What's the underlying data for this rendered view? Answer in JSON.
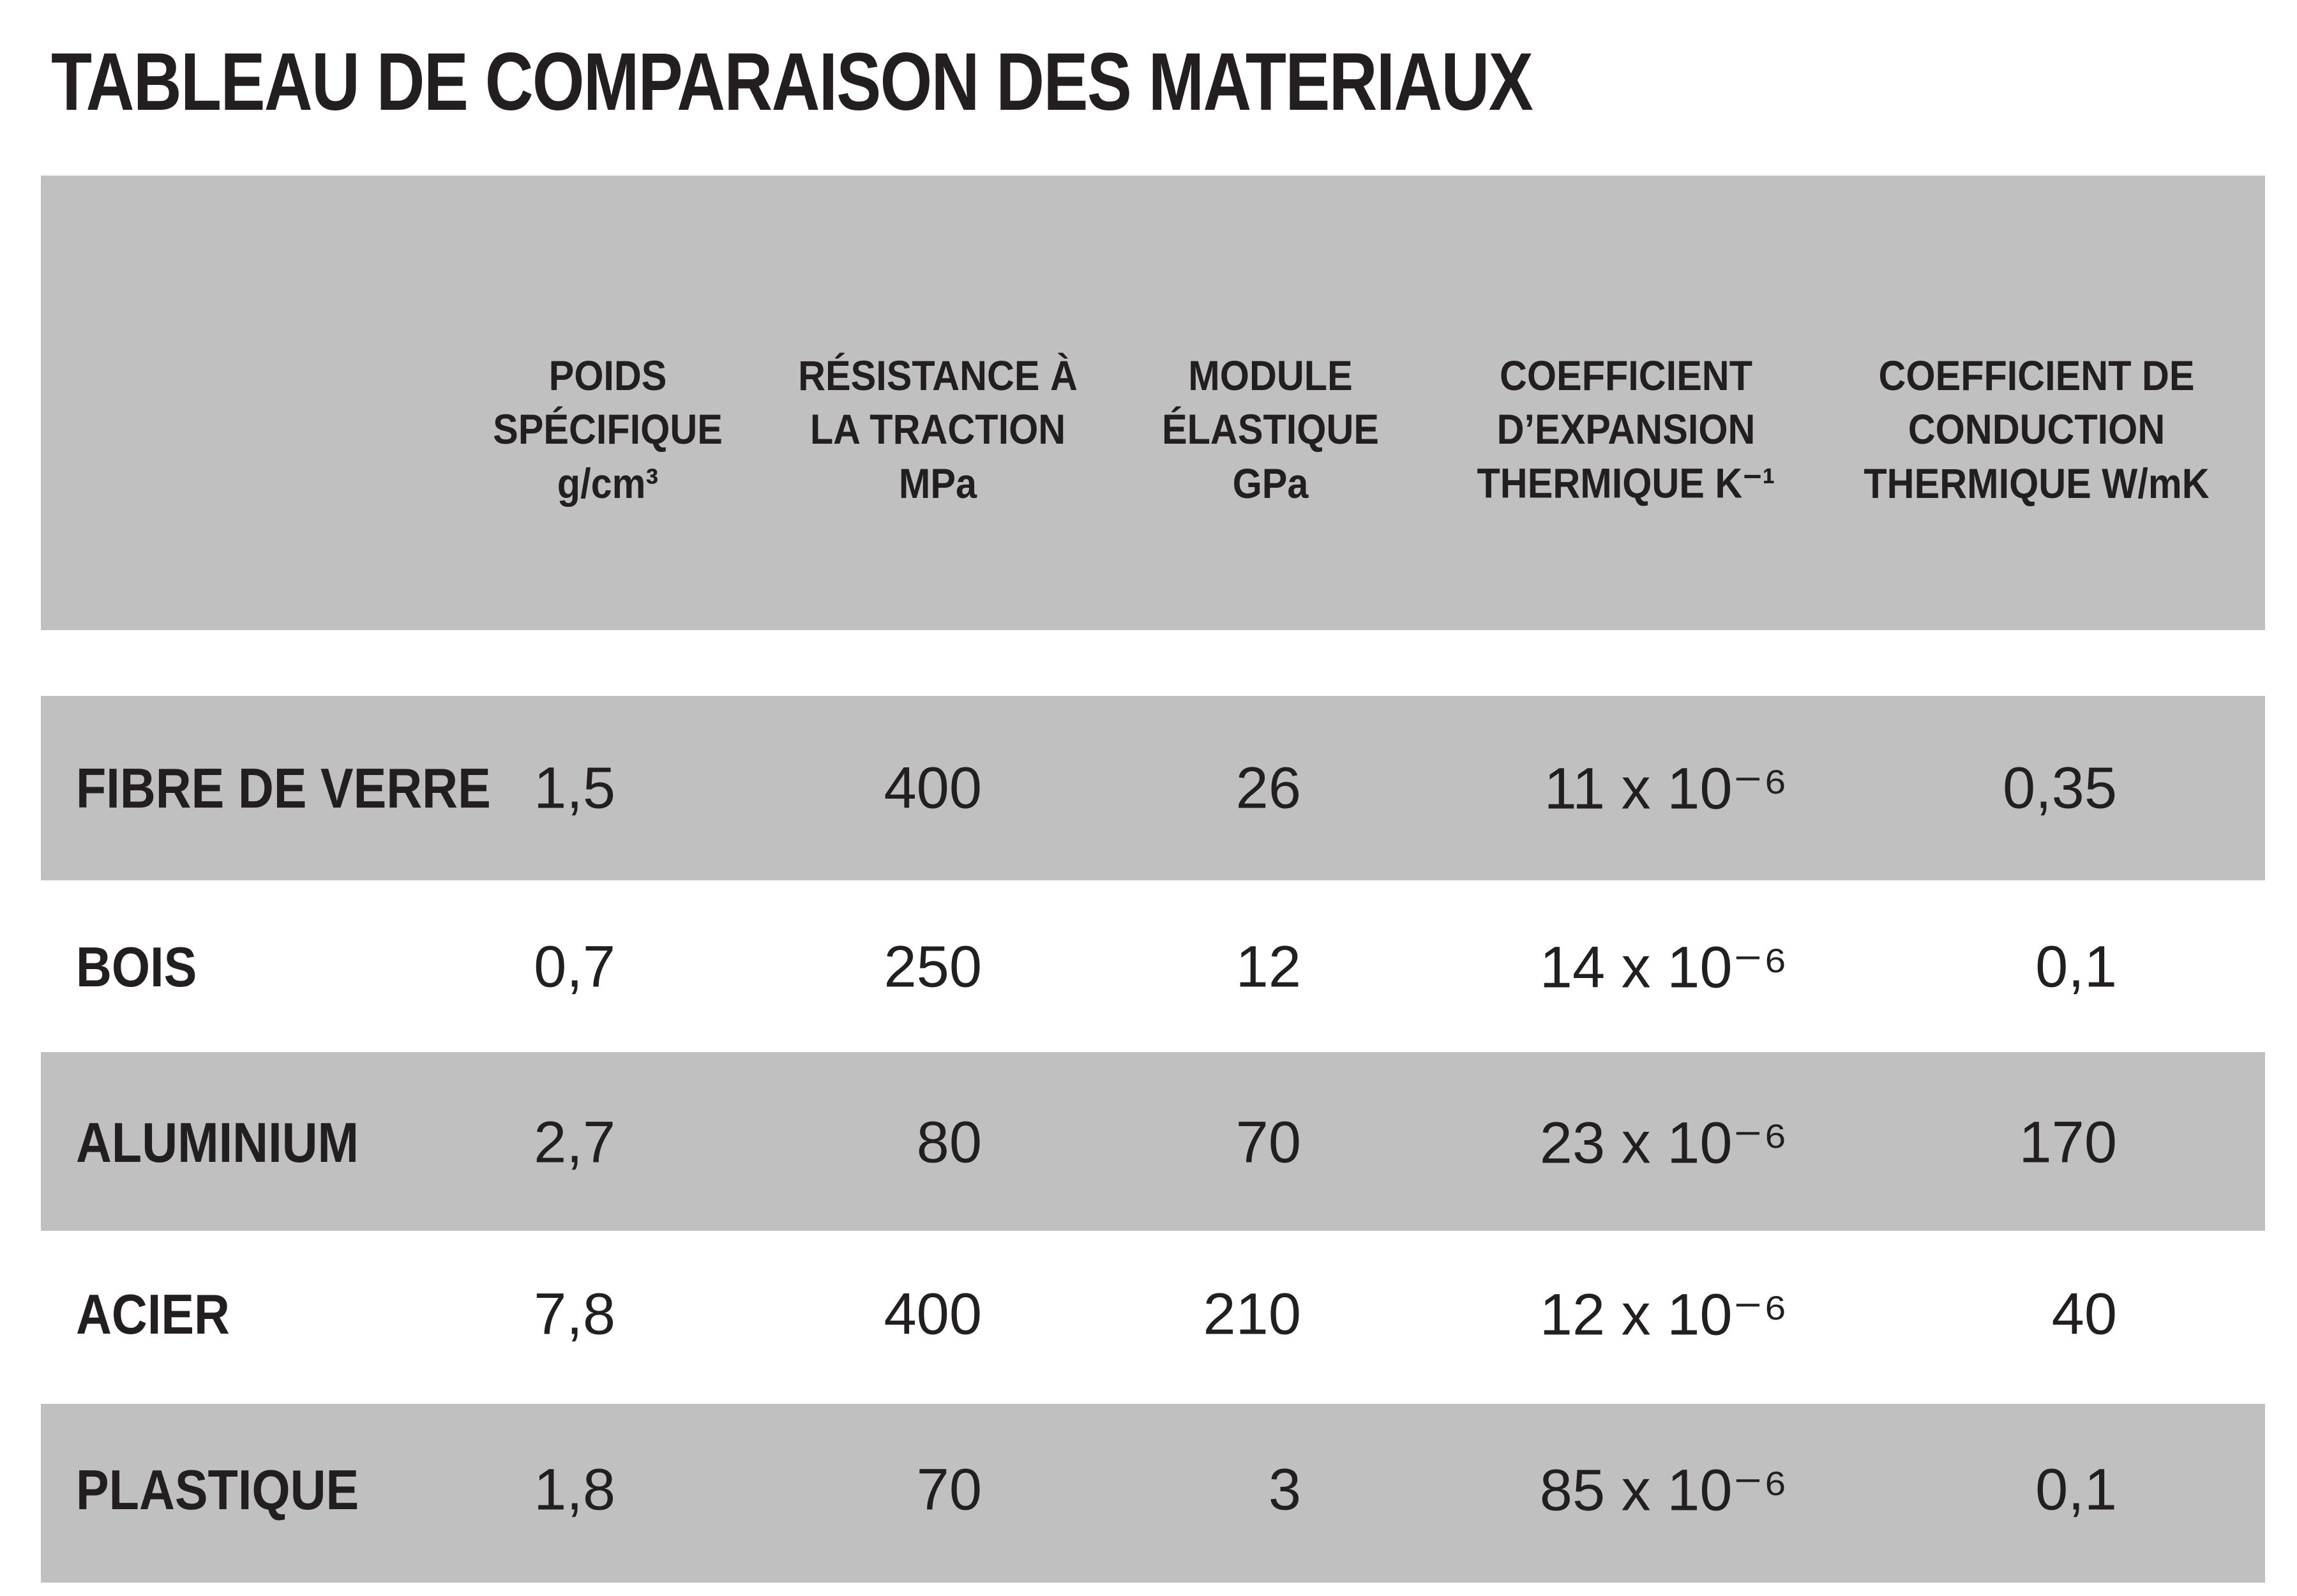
{
  "title": "TABLEAU DE COMPARAISON DES MATERIAUX",
  "table": {
    "header": [
      [
        "POIDS",
        "SPÉCIFIQUE",
        "g/cm³"
      ],
      [
        "RÉSISTANCE À",
        "LA TRACTION",
        "MPa"
      ],
      [
        "MODULE",
        "ÉLASTIQUE",
        "GPa"
      ],
      [
        "COEFFICIENT",
        "D’EXPANSION",
        "THERMIQUE K⁻¹"
      ],
      [
        "COEFFICIENT DE",
        "CONDUCTION",
        "THERMIQUE W/mK"
      ]
    ],
    "rows": [
      [
        "FIBRE DE VERRE",
        "1,5",
        "400",
        "26",
        "11 x 10⁻⁶",
        "0,35"
      ],
      [
        "BOIS",
        "0,7",
        "250",
        "12",
        "14 x 10⁻⁶",
        "0,1"
      ],
      [
        "ALUMINIUM",
        "2,7",
        "80",
        "70",
        "23 x 10⁻⁶",
        "170"
      ],
      [
        "ACIER",
        "7,8",
        "400",
        "210",
        "12 x 10⁻⁶",
        "40"
      ],
      [
        "PLASTIQUE",
        "1,8",
        "70",
        "3",
        "85 x 10⁻⁶",
        "0,1"
      ]
    ]
  }
}
